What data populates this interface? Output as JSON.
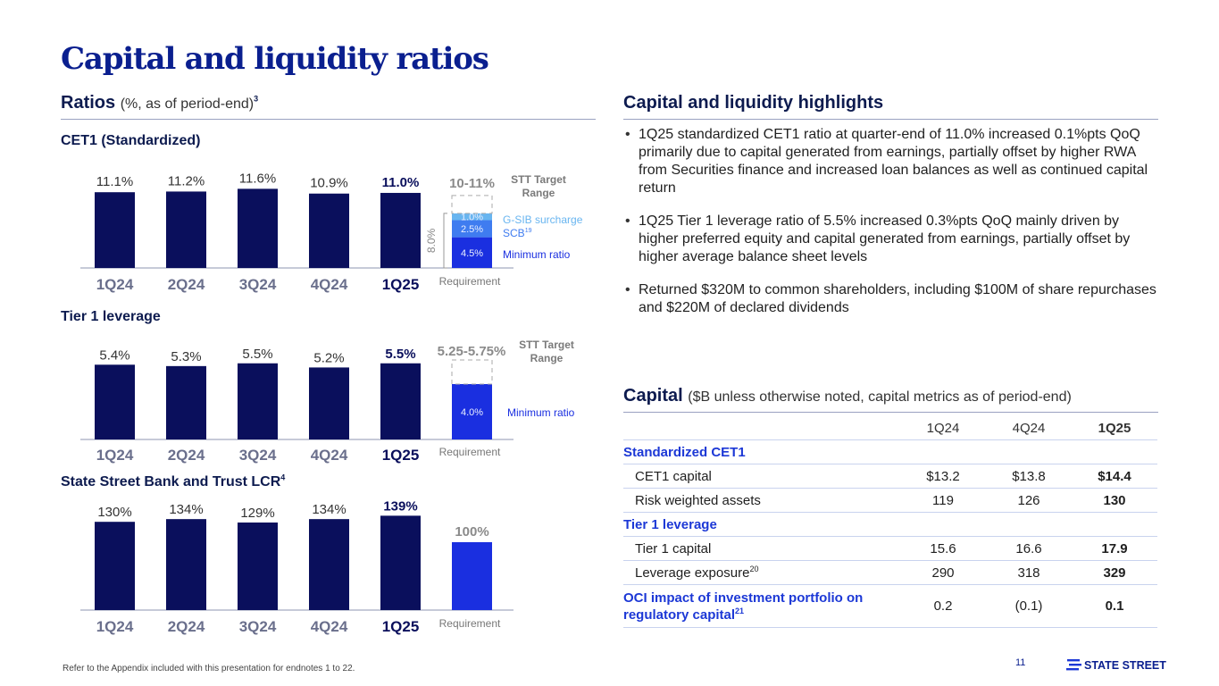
{
  "page": {
    "title": "Capital and liquidity ratios",
    "footnote": "Refer to the Appendix included with this presentation for endnotes 1 to 22.",
    "page_number": "11",
    "logo_text": "STATE STREET"
  },
  "ratios": {
    "heading": "Ratios",
    "subheading": "(%, as of period-end)",
    "sup": "3"
  },
  "chart_data": [
    {
      "type": "bar",
      "title": "CET1 (Standardized)",
      "categories": [
        "1Q24",
        "2Q24",
        "3Q24",
        "4Q24",
        "1Q25"
      ],
      "values": [
        11.1,
        11.2,
        11.6,
        10.9,
        11.0
      ],
      "labels": [
        "11.1%",
        "11.2%",
        "11.6%",
        "10.9%",
        "11.0%"
      ],
      "requirement": {
        "label": "Requirement",
        "target": "10-11%",
        "target_label": "STT Target Range",
        "total": "8.0%",
        "segments": [
          {
            "name": "Minimum ratio",
            "label": "4.5%",
            "value": 4.5
          },
          {
            "name": "SCB",
            "label": "2.5%",
            "value": 2.5,
            "sup": "19"
          },
          {
            "name": "G-SIB surcharge",
            "label": "1.0%",
            "value": 1.0
          }
        ]
      }
    },
    {
      "type": "bar",
      "title": "Tier 1 leverage",
      "categories": [
        "1Q24",
        "2Q24",
        "3Q24",
        "4Q24",
        "1Q25"
      ],
      "values": [
        5.4,
        5.3,
        5.5,
        5.2,
        5.5
      ],
      "labels": [
        "5.4%",
        "5.3%",
        "5.5%",
        "5.2%",
        "5.5%"
      ],
      "requirement": {
        "label": "Requirement",
        "target": "5.25-5.75%",
        "target_label": "STT Target Range",
        "segments": [
          {
            "name": "Minimum ratio",
            "label": "4.0%",
            "value": 4.0
          }
        ]
      }
    },
    {
      "type": "bar",
      "title": "State Street Bank and Trust LCR",
      "title_sup": "4",
      "categories": [
        "1Q24",
        "2Q24",
        "3Q24",
        "4Q24",
        "1Q25"
      ],
      "values": [
        130,
        134,
        129,
        134,
        139
      ],
      "labels": [
        "130%",
        "134%",
        "129%",
        "134%",
        "139%"
      ],
      "requirement": {
        "label": "Requirement",
        "value": 100,
        "value_label": "100%"
      }
    }
  ],
  "highlights": {
    "heading": "Capital and liquidity highlights",
    "bullets": [
      "1Q25 standardized CET1 ratio at quarter-end of 11.0% increased 0.1%pts QoQ primarily due to capital generated from earnings, partially offset by higher RWA from Securities finance and increased loan balances as well as continued capital return",
      "1Q25 Tier 1 leverage ratio of 5.5% increased 0.3%pts QoQ mainly driven by higher preferred equity and capital generated from earnings, partially offset by higher average balance sheet levels",
      "Returned $320M to common shareholders, including $100M of share repurchases and $220M of declared dividends"
    ]
  },
  "capital": {
    "heading": "Capital",
    "subheading": "($B unless otherwise noted, capital metrics as of period-end)",
    "columns": [
      "1Q24",
      "4Q24",
      "1Q25"
    ],
    "std_cet1": "Standardized CET1",
    "cet1_capital": {
      "label": "CET1 capital",
      "values": [
        "$13.2",
        "$13.8",
        "$14.4"
      ]
    },
    "rwa": {
      "label": "Risk weighted assets",
      "values": [
        "119",
        "126",
        "130"
      ]
    },
    "tier1_lev": "Tier 1 leverage",
    "tier1_capital": {
      "label": "Tier 1 capital",
      "values": [
        "15.6",
        "16.6",
        "17.9"
      ]
    },
    "lev_exposure": {
      "label": "Leverage exposure",
      "sup": "20",
      "values": [
        "290",
        "318",
        "329"
      ]
    },
    "oci": {
      "label1": "OCI impact of investment portfolio on",
      "label2": "regulatory capital",
      "sup": "21",
      "values": [
        "0.2",
        "(0.1)",
        "0.1"
      ]
    }
  },
  "colors": {
    "bar": "#0a0f5c",
    "min_ratio": "#1a2fe0",
    "scb": "#3f7cf0",
    "gsib": "#68b5f0",
    "accent": "#1c38d6",
    "title": "#0a1f8f"
  }
}
